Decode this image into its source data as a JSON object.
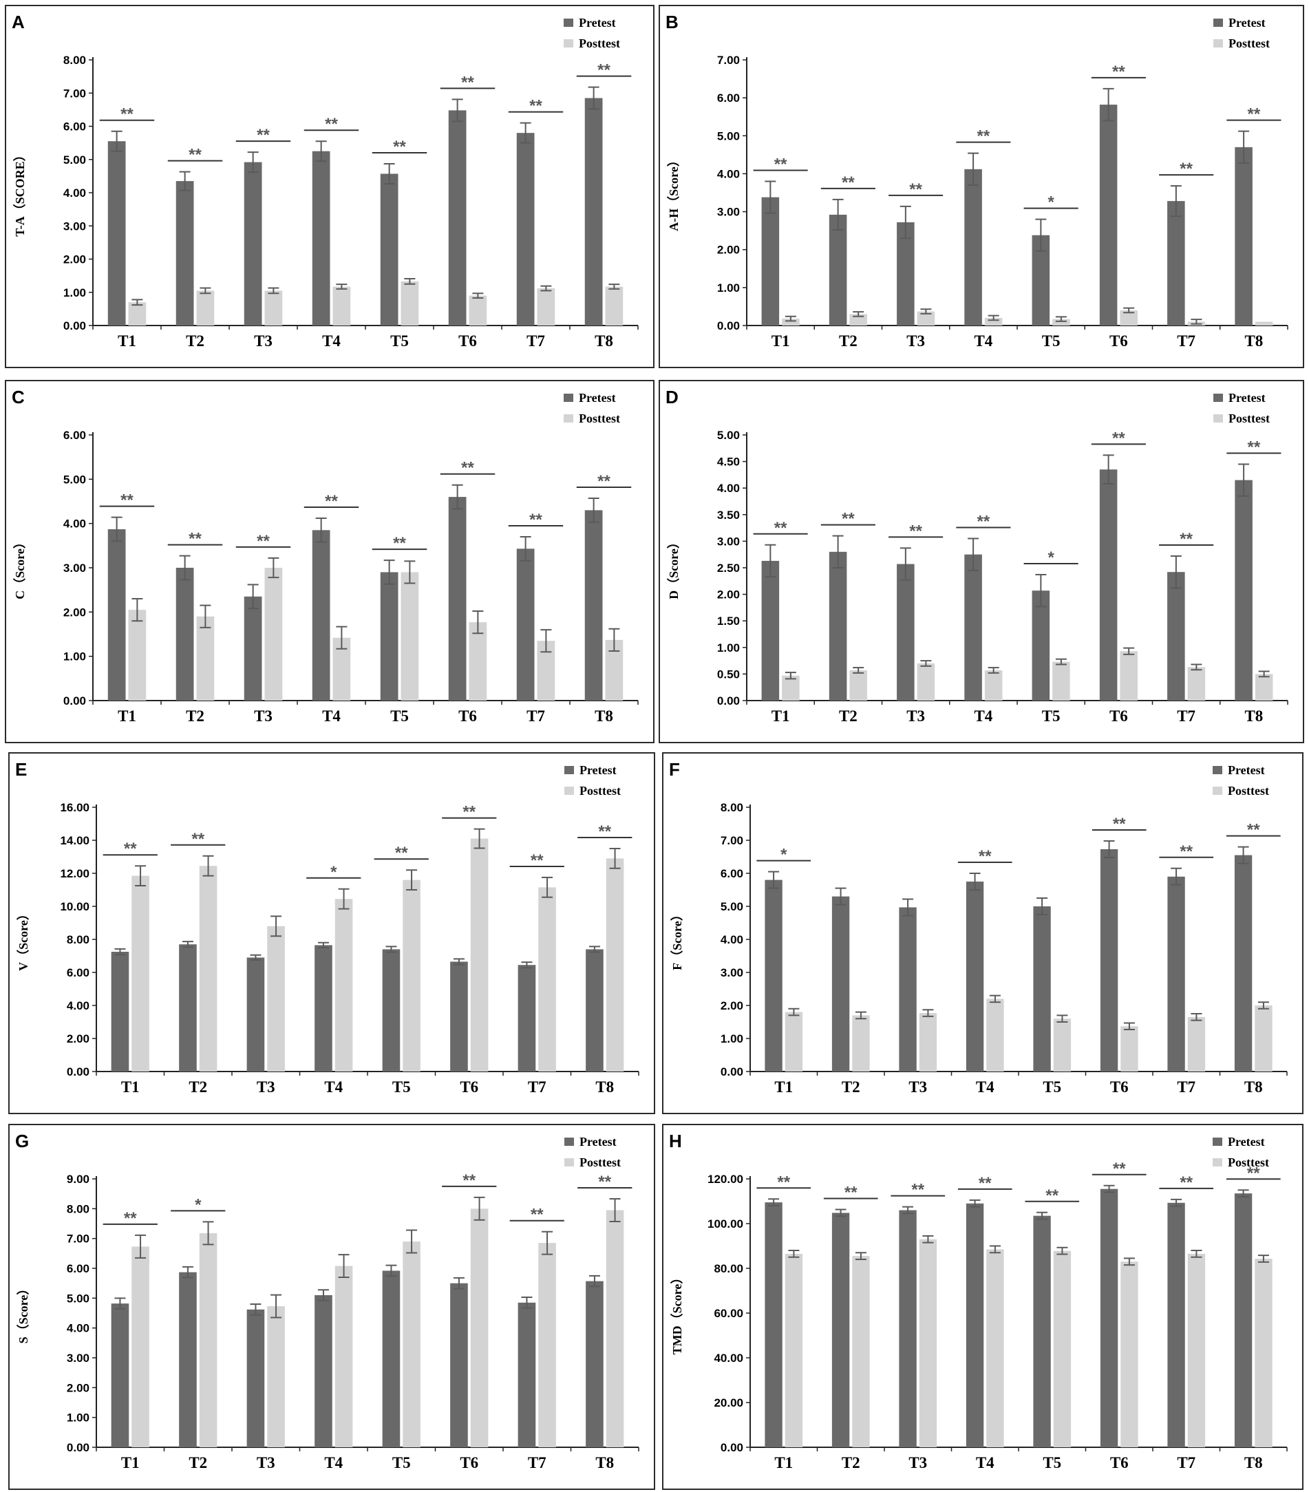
{
  "colors": {
    "pretest": "#696969",
    "posttest": "#d3d3d3",
    "axis": "#222222",
    "errorbar": "#5a5a5a",
    "significance": "#595959"
  },
  "chart_data": [
    {
      "type": "bar",
      "panel": "A",
      "ylabel": "T-A（SCORE）",
      "categories": [
        "T1",
        "T2",
        "T3",
        "T4",
        "T5",
        "T6",
        "T7",
        "T8"
      ],
      "ylim": [
        0,
        8
      ],
      "yticks": [
        "0.00",
        "1.00",
        "2.00",
        "3.00",
        "4.00",
        "5.00",
        "6.00",
        "7.00",
        "8.00"
      ],
      "legend": [
        "Pretest",
        "Posttest"
      ],
      "legend_position": "top-right",
      "series": [
        {
          "name": "Pretest",
          "values": [
            5.55,
            4.35,
            4.92,
            5.25,
            4.57,
            6.48,
            5.8,
            6.85
          ],
          "errors": [
            0.3,
            0.28,
            0.3,
            0.3,
            0.3,
            0.33,
            0.3,
            0.33
          ]
        },
        {
          "name": "Posttest",
          "values": [
            0.7,
            1.05,
            1.05,
            1.17,
            1.33,
            0.9,
            1.12,
            1.17
          ],
          "errors": [
            0.08,
            0.08,
            0.08,
            0.07,
            0.08,
            0.07,
            0.07,
            0.07
          ]
        }
      ],
      "significance": [
        "**",
        "**",
        "**",
        "**",
        "**",
        "**",
        "**",
        "**"
      ]
    },
    {
      "type": "bar",
      "panel": "B",
      "ylabel": "A-H（Score）",
      "categories": [
        "T1",
        "T2",
        "T3",
        "T4",
        "T5",
        "T6",
        "T7",
        "T8"
      ],
      "ylim": [
        0,
        7
      ],
      "yticks": [
        "0.00",
        "1.00",
        "2.00",
        "3.00",
        "4.00",
        "5.00",
        "6.00",
        "7.00"
      ],
      "legend": [
        "Pretest",
        "Posttest"
      ],
      "legend_position": "top-right",
      "series": [
        {
          "name": "Pretest",
          "values": [
            3.38,
            2.92,
            2.72,
            4.12,
            2.38,
            5.82,
            3.28,
            4.7
          ],
          "errors": [
            0.42,
            0.4,
            0.42,
            0.42,
            0.42,
            0.42,
            0.4,
            0.42
          ]
        },
        {
          "name": "Posttest",
          "values": [
            0.18,
            0.3,
            0.37,
            0.2,
            0.17,
            0.4,
            0.1,
            0.1
          ],
          "errors": [
            0.06,
            0.06,
            0.06,
            0.06,
            0.06,
            0.06,
            0.06,
            0.0
          ]
        }
      ],
      "significance": [
        "**",
        "**",
        "**",
        "**",
        "*",
        "**",
        "**",
        "**"
      ]
    },
    {
      "type": "bar",
      "panel": "C",
      "ylabel": "C（Score）",
      "categories": [
        "T1",
        "T2",
        "T3",
        "T4",
        "T5",
        "T6",
        "T7",
        "T8"
      ],
      "ylim": [
        0,
        6
      ],
      "yticks": [
        "0.00",
        "1.00",
        "2.00",
        "3.00",
        "4.00",
        "5.00",
        "6.00"
      ],
      "legend": [
        "Pretest",
        "Posttest"
      ],
      "legend_position": "top-right",
      "series": [
        {
          "name": "Pretest",
          "values": [
            3.87,
            3.0,
            2.35,
            3.85,
            2.9,
            4.6,
            3.43,
            4.3
          ],
          "errors": [
            0.27,
            0.27,
            0.27,
            0.27,
            0.27,
            0.27,
            0.27,
            0.27
          ]
        },
        {
          "name": "Posttest",
          "values": [
            2.05,
            1.9,
            3.0,
            1.42,
            2.9,
            1.77,
            1.35,
            1.37
          ],
          "errors": [
            0.25,
            0.25,
            0.22,
            0.25,
            0.25,
            0.25,
            0.25,
            0.25
          ]
        }
      ],
      "significance": [
        "**",
        "**",
        "**",
        "**",
        "**",
        "**",
        "**",
        "**"
      ]
    },
    {
      "type": "bar",
      "panel": "D",
      "ylabel": "D（Score）",
      "categories": [
        "T1",
        "T2",
        "T3",
        "T4",
        "T5",
        "T6",
        "T7",
        "T8"
      ],
      "ylim": [
        0,
        5
      ],
      "yticks": [
        "0.00",
        "0.50",
        "1.00",
        "1.50",
        "2.00",
        "2.50",
        "3.00",
        "3.50",
        "4.00",
        "4.50",
        "5.00"
      ],
      "legend": [
        "Pretest",
        "Posttest"
      ],
      "legend_position": "top-right",
      "series": [
        {
          "name": "Pretest",
          "values": [
            2.63,
            2.8,
            2.57,
            2.75,
            2.07,
            4.35,
            2.42,
            4.15
          ],
          "errors": [
            0.3,
            0.3,
            0.3,
            0.3,
            0.3,
            0.27,
            0.3,
            0.3
          ]
        },
        {
          "name": "Posttest",
          "values": [
            0.47,
            0.57,
            0.7,
            0.57,
            0.73,
            0.93,
            0.63,
            0.5
          ],
          "errors": [
            0.06,
            0.05,
            0.05,
            0.05,
            0.05,
            0.06,
            0.05,
            0.05
          ]
        }
      ],
      "significance": [
        "**",
        "**",
        "**",
        "**",
        "*",
        "**",
        "**",
        "**"
      ]
    },
    {
      "type": "bar",
      "panel": "E",
      "ylabel": "V（Score）",
      "categories": [
        "T1",
        "T2",
        "T3",
        "T4",
        "T5",
        "T6",
        "T7",
        "T8"
      ],
      "ylim": [
        0,
        16
      ],
      "yticks": [
        "0.00",
        "2.00",
        "4.00",
        "6.00",
        "8.00",
        "10.00",
        "12.00",
        "14.00",
        "16.00"
      ],
      "legend": [
        "Pretest",
        "Posttest"
      ],
      "legend_position": "top-right",
      "series": [
        {
          "name": "Pretest",
          "values": [
            7.25,
            7.7,
            6.9,
            7.65,
            7.4,
            6.65,
            6.45,
            7.4
          ],
          "errors": [
            0.17,
            0.17,
            0.15,
            0.15,
            0.17,
            0.17,
            0.17,
            0.17
          ]
        },
        {
          "name": "Posttest",
          "values": [
            11.85,
            12.45,
            8.8,
            10.45,
            11.6,
            14.1,
            11.15,
            12.9
          ],
          "errors": [
            0.6,
            0.6,
            0.6,
            0.6,
            0.6,
            0.58,
            0.6,
            0.6
          ]
        }
      ],
      "significance": [
        "**",
        "**",
        "",
        "*",
        "**",
        "**",
        "**",
        "**"
      ]
    },
    {
      "type": "bar",
      "panel": "F",
      "ylabel": "F（Score）",
      "categories": [
        "T1",
        "T2",
        "T3",
        "T4",
        "T5",
        "T6",
        "T7",
        "T8"
      ],
      "ylim": [
        0,
        8
      ],
      "yticks": [
        "0.00",
        "1.00",
        "2.00",
        "3.00",
        "4.00",
        "5.00",
        "6.00",
        "7.00",
        "8.00"
      ],
      "legend": [
        "Pretest",
        "Posttest"
      ],
      "legend_position": "top-right",
      "series": [
        {
          "name": "Pretest",
          "values": [
            5.8,
            5.3,
            4.97,
            5.75,
            5.0,
            6.73,
            5.9,
            6.55
          ],
          "errors": [
            0.25,
            0.25,
            0.25,
            0.25,
            0.25,
            0.25,
            0.25,
            0.25
          ]
        },
        {
          "name": "Posttest",
          "values": [
            1.8,
            1.7,
            1.77,
            2.2,
            1.6,
            1.37,
            1.65,
            2.0
          ],
          "errors": [
            0.1,
            0.1,
            0.1,
            0.1,
            0.1,
            0.1,
            0.1,
            0.1
          ]
        }
      ],
      "significance": [
        "*",
        "",
        "",
        "**",
        "",
        "**",
        "**",
        "**"
      ]
    },
    {
      "type": "bar",
      "panel": "G",
      "ylabel": "S（Score）",
      "categories": [
        "T1",
        "T2",
        "T3",
        "T4",
        "T5",
        "T6",
        "T7",
        "T8"
      ],
      "ylim": [
        0,
        9
      ],
      "yticks": [
        "0.00",
        "1.00",
        "2.00",
        "3.00",
        "4.00",
        "5.00",
        "6.00",
        "7.00",
        "8.00",
        "9.00"
      ],
      "legend": [
        "Pretest",
        "Posttest"
      ],
      "legend_position": "top-right",
      "series": [
        {
          "name": "Pretest",
          "values": [
            4.82,
            5.87,
            4.62,
            5.1,
            5.92,
            5.5,
            4.85,
            5.57
          ],
          "errors": [
            0.18,
            0.18,
            0.18,
            0.18,
            0.18,
            0.18,
            0.18,
            0.18
          ]
        },
        {
          "name": "Posttest",
          "values": [
            6.73,
            7.18,
            4.73,
            6.08,
            6.9,
            8.0,
            6.85,
            7.95
          ],
          "errors": [
            0.38,
            0.38,
            0.38,
            0.38,
            0.38,
            0.38,
            0.38,
            0.38
          ]
        }
      ],
      "significance": [
        "**",
        "*",
        "",
        "",
        "",
        "**",
        "**",
        "**"
      ]
    },
    {
      "type": "bar",
      "panel": "H",
      "ylabel": "TMD（Score）",
      "categories": [
        "T1",
        "T2",
        "T3",
        "T4",
        "T5",
        "T6",
        "T7",
        "T8"
      ],
      "ylim": [
        0,
        120
      ],
      "yticks": [
        "0.00",
        "20.00",
        "40.00",
        "60.00",
        "80.00",
        "100.00",
        "120.00"
      ],
      "legend": [
        "Pretest",
        "Posttest"
      ],
      "legend_position": "top-right",
      "series": [
        {
          "name": "Pretest",
          "values": [
            109.5,
            104.8,
            106.0,
            109.0,
            103.5,
            115.5,
            109.3,
            113.5
          ],
          "errors": [
            1.5,
            1.5,
            1.5,
            1.5,
            1.5,
            1.5,
            1.5,
            1.5
          ]
        },
        {
          "name": "Posttest",
          "values": [
            86.5,
            85.5,
            93.0,
            88.5,
            87.8,
            83.0,
            86.5,
            84.3
          ],
          "errors": [
            1.5,
            1.5,
            1.5,
            1.5,
            1.5,
            1.5,
            1.5,
            1.5
          ]
        }
      ],
      "significance": [
        "**",
        "**",
        "**",
        "**",
        "**",
        "**",
        "**",
        "**"
      ]
    }
  ]
}
